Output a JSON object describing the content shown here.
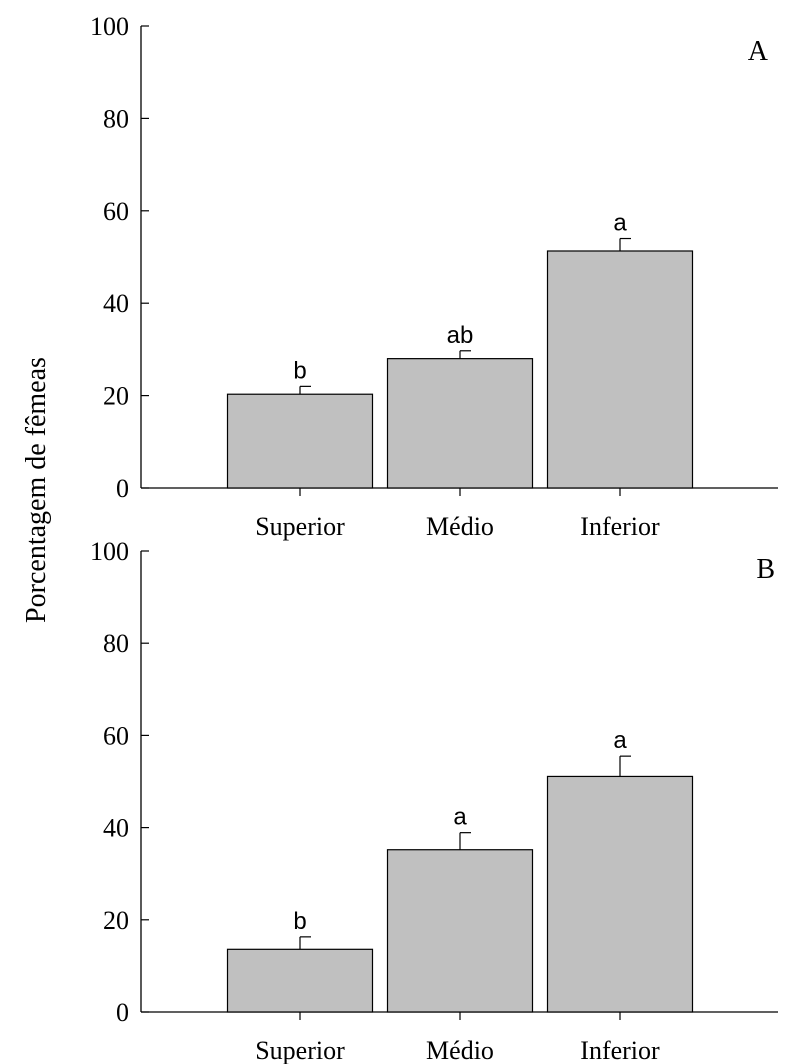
{
  "shared_ylabel": "Porcentagem de fêmeas",
  "chart_data": [
    {
      "type": "bar",
      "panel_label": "A",
      "categories": [
        "Superior",
        "Médio",
        "Inferior"
      ],
      "values": [
        20.3,
        28.0,
        51.3
      ],
      "errors": [
        1.7,
        1.7,
        2.7
      ],
      "significance_labels": [
        "b",
        "ab",
        "a"
      ],
      "ylim": [
        0,
        100
      ],
      "yticks": [
        "0",
        "20",
        "40",
        "60",
        "80",
        "100"
      ],
      "bar_color": "#c0c0c0"
    },
    {
      "type": "bar",
      "panel_label": "B",
      "categories": [
        "Superior",
        "Médio",
        "Inferior"
      ],
      "values": [
        13.6,
        35.2,
        51.1
      ],
      "errors": [
        2.7,
        3.7,
        4.4
      ],
      "significance_labels": [
        "b",
        "a",
        "a"
      ],
      "ylim": [
        0,
        100
      ],
      "yticks": [
        "0",
        "20",
        "40",
        "60",
        "80",
        "100"
      ],
      "bar_color": "#c0c0c0"
    }
  ]
}
